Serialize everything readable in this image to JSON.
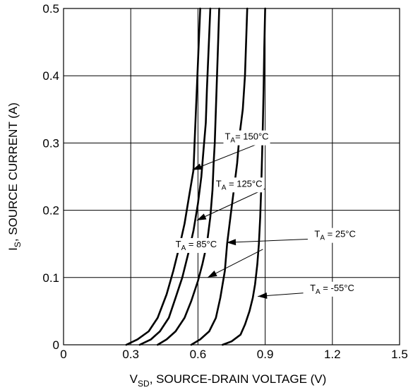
{
  "chart_data": {
    "type": "line",
    "xlabel": {
      "main": "V",
      "sub": "SD",
      "rest": ", SOURCE-DRAIN VOLTAGE (V)"
    },
    "ylabel": {
      "main": "I",
      "sub": "S",
      "rest": ", SOURCE CURRENT (A)"
    },
    "xlim": [
      0,
      1.5
    ],
    "ylim": [
      0,
      0.5
    ],
    "grid": true,
    "x_ticks": [
      {
        "value": 0,
        "label": "0"
      },
      {
        "value": 0.3,
        "label": "0.3"
      },
      {
        "value": 0.6,
        "label": "0.6"
      },
      {
        "value": 0.9,
        "label": "0.9"
      },
      {
        "value": 1.2,
        "label": "1.2"
      },
      {
        "value": 1.5,
        "label": "1.5"
      }
    ],
    "y_ticks": [
      {
        "value": 0,
        "label": "0"
      },
      {
        "value": 0.1,
        "label": "0.1"
      },
      {
        "value": 0.2,
        "label": "0.2"
      },
      {
        "value": 0.3,
        "label": "0.3"
      },
      {
        "value": 0.4,
        "label": "0.4"
      },
      {
        "value": 0.5,
        "label": "0.5"
      }
    ],
    "series": [
      {
        "name": "T_A = 150°C",
        "points": [
          [
            0.28,
            0
          ],
          [
            0.33,
            0.008
          ],
          [
            0.38,
            0.02
          ],
          [
            0.42,
            0.04
          ],
          [
            0.46,
            0.075
          ],
          [
            0.49,
            0.11
          ],
          [
            0.52,
            0.15
          ],
          [
            0.54,
            0.18
          ],
          [
            0.56,
            0.22
          ],
          [
            0.58,
            0.26
          ],
          [
            0.585,
            0.3
          ],
          [
            0.59,
            0.34
          ],
          [
            0.595,
            0.38
          ],
          [
            0.6,
            0.42
          ],
          [
            0.605,
            0.46
          ],
          [
            0.61,
            0.5
          ]
        ]
      },
      {
        "name": "T_A = 125°C",
        "points": [
          [
            0.34,
            0
          ],
          [
            0.39,
            0.008
          ],
          [
            0.43,
            0.02
          ],
          [
            0.47,
            0.04
          ],
          [
            0.5,
            0.07
          ],
          [
            0.53,
            0.1
          ],
          [
            0.56,
            0.14
          ],
          [
            0.58,
            0.17
          ],
          [
            0.6,
            0.21
          ],
          [
            0.615,
            0.25
          ],
          [
            0.625,
            0.29
          ],
          [
            0.635,
            0.33
          ],
          [
            0.64,
            0.38
          ],
          [
            0.645,
            0.42
          ],
          [
            0.65,
            0.46
          ],
          [
            0.655,
            0.5
          ]
        ]
      },
      {
        "name": "T_A = 85°C",
        "points": [
          [
            0.42,
            0
          ],
          [
            0.46,
            0.008
          ],
          [
            0.5,
            0.02
          ],
          [
            0.54,
            0.04
          ],
          [
            0.57,
            0.065
          ],
          [
            0.6,
            0.095
          ],
          [
            0.62,
            0.12
          ],
          [
            0.64,
            0.15
          ],
          [
            0.655,
            0.19
          ],
          [
            0.665,
            0.23
          ],
          [
            0.67,
            0.27
          ],
          [
            0.675,
            0.3
          ],
          [
            0.68,
            0.35
          ],
          [
            0.685,
            0.4
          ],
          [
            0.69,
            0.45
          ],
          [
            0.695,
            0.5
          ]
        ]
      },
      {
        "name": "T_A = 25°C",
        "points": [
          [
            0.57,
            0
          ],
          [
            0.61,
            0.008
          ],
          [
            0.65,
            0.02
          ],
          [
            0.68,
            0.04
          ],
          [
            0.7,
            0.07
          ],
          [
            0.72,
            0.11
          ],
          [
            0.73,
            0.15
          ],
          [
            0.745,
            0.19
          ],
          [
            0.76,
            0.23
          ],
          [
            0.775,
            0.27
          ],
          [
            0.785,
            0.31
          ],
          [
            0.8,
            0.35
          ],
          [
            0.81,
            0.4
          ],
          [
            0.815,
            0.45
          ],
          [
            0.82,
            0.5
          ]
        ]
      },
      {
        "name": "T_A = -55°C",
        "points": [
          [
            0.71,
            0
          ],
          [
            0.75,
            0.005
          ],
          [
            0.79,
            0.015
          ],
          [
            0.81,
            0.03
          ],
          [
            0.83,
            0.05
          ],
          [
            0.845,
            0.07
          ],
          [
            0.855,
            0.09
          ],
          [
            0.865,
            0.12
          ],
          [
            0.872,
            0.15
          ],
          [
            0.878,
            0.19
          ],
          [
            0.882,
            0.23
          ],
          [
            0.886,
            0.28
          ],
          [
            0.89,
            0.33
          ],
          [
            0.893,
            0.38
          ],
          [
            0.896,
            0.44
          ],
          [
            0.9,
            0.5
          ]
        ]
      }
    ],
    "annotations": [
      {
        "name": "label-150",
        "main": "T",
        "sub": "A",
        "rest": "= 150°C",
        "text_xy": [
          0.72,
          0.305
        ],
        "line_from": [
          0.9,
          0.303
        ],
        "arrow_to": [
          0.575,
          0.26
        ]
      },
      {
        "name": "label-125",
        "main": "T",
        "sub": "A",
        "rest": " = 125°C",
        "text_xy": [
          0.68,
          0.235
        ],
        "line_from": [
          0.9,
          0.232
        ],
        "arrow_to": [
          0.595,
          0.185
        ]
      },
      {
        "name": "label-85",
        "main": "T",
        "sub": "A",
        "rest": " = 85°C",
        "text_xy": [
          0.5,
          0.145
        ],
        "line_from": [
          0.89,
          0.142
        ],
        "arrow_to": [
          0.643,
          0.1
        ]
      },
      {
        "name": "label-25",
        "main": "T",
        "sub": "A",
        "rest": " = 25°C",
        "text_xy": [
          1.12,
          0.16
        ],
        "line_from": [
          1.09,
          0.157
        ],
        "arrow_to": [
          0.728,
          0.152
        ]
      },
      {
        "name": "label-neg55",
        "main": "T",
        "sub": "A",
        "rest": " = -55°C",
        "text_xy": [
          1.1,
          0.08
        ],
        "line_from": [
          1.07,
          0.077
        ],
        "arrow_to": [
          0.867,
          0.072
        ]
      }
    ]
  }
}
